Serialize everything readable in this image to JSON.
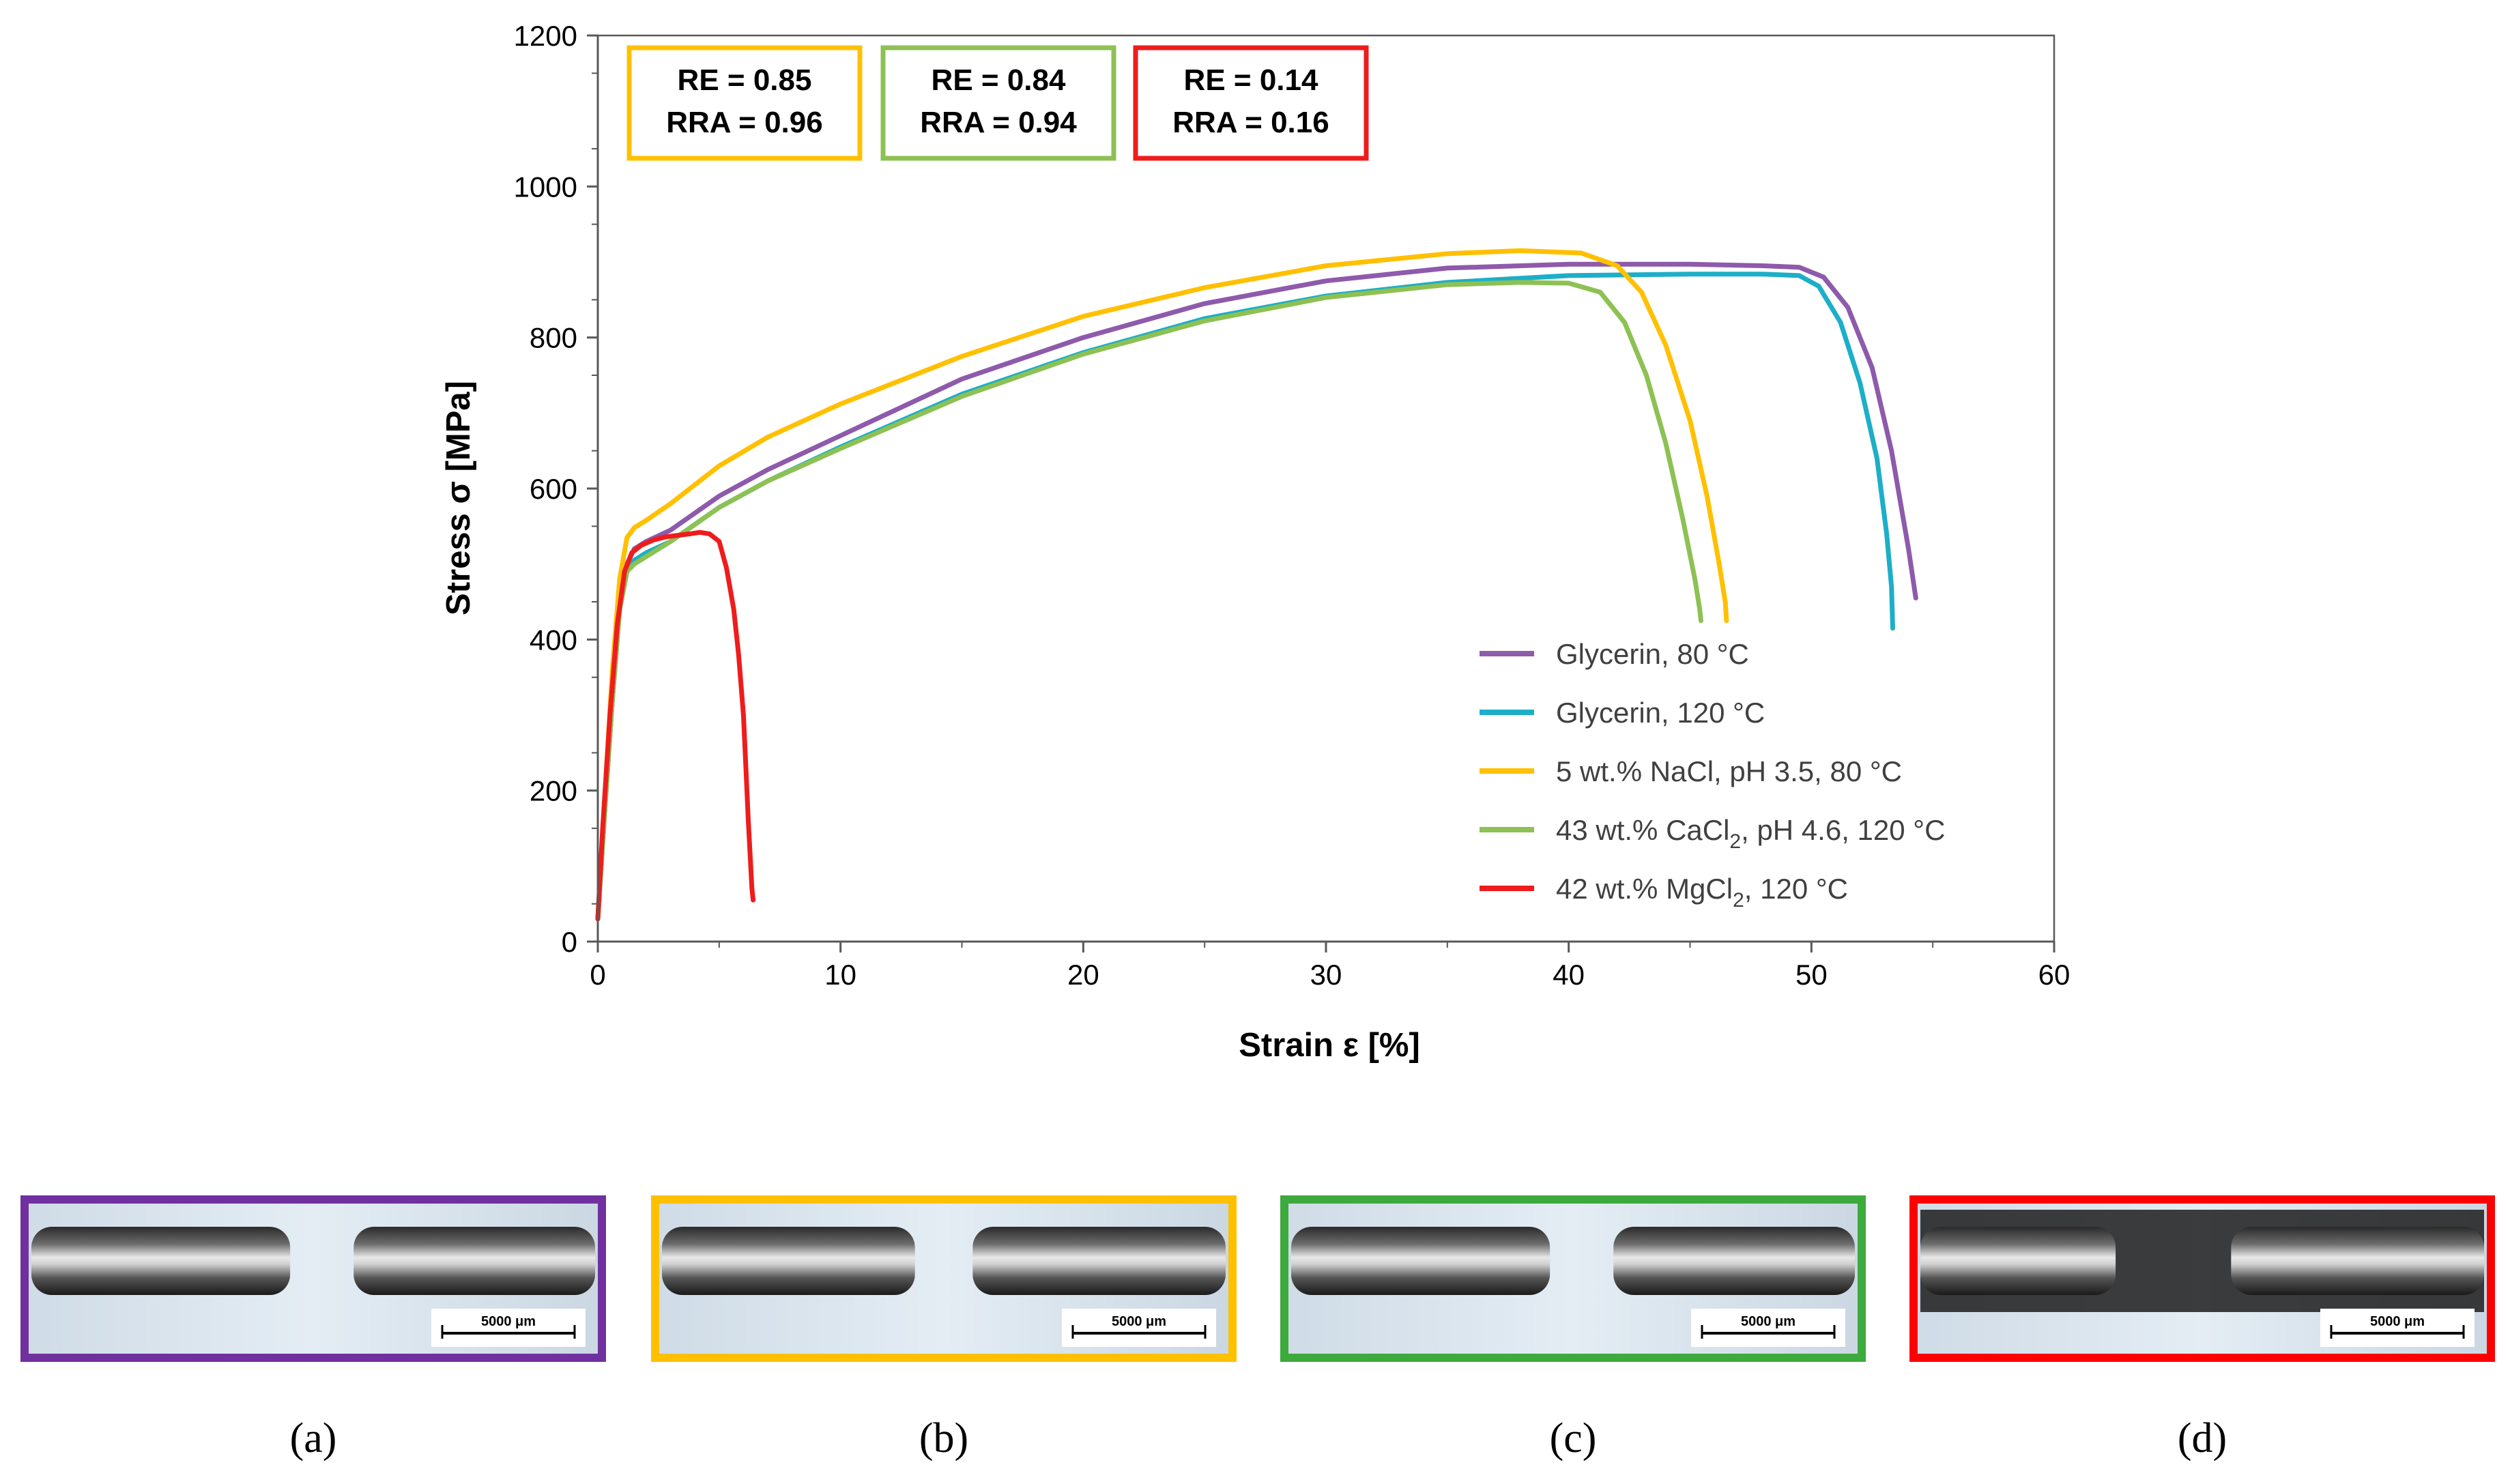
{
  "chart_data": {
    "type": "line",
    "xlabel": "Strain ε [%]",
    "ylabel": "Stress σ [MPa]",
    "xlim": [
      0,
      60
    ],
    "ylim": [
      0,
      1200
    ],
    "xticks": [
      0,
      10,
      20,
      30,
      40,
      50,
      60
    ],
    "yticks": [
      0,
      200,
      400,
      600,
      800,
      1000,
      1200
    ],
    "legend_position": "lower-right",
    "series": [
      {
        "name": "Glycerin, 80 °C",
        "legend": {
          "pre": "Glycerin, 80 °C",
          "sub": "",
          "post": ""
        },
        "color": "#8E5AAB",
        "x": [
          0,
          0.3,
          0.6,
          0.9,
          1.2,
          1.5,
          2,
          3,
          5,
          7,
          10,
          15,
          20,
          25,
          30,
          35,
          40,
          45,
          48,
          49.5,
          50.5,
          51.5,
          52.5,
          53.3,
          54,
          54.3
        ],
        "y": [
          30,
          180,
          320,
          440,
          500,
          520,
          530,
          545,
          590,
          625,
          670,
          745,
          800,
          845,
          875,
          892,
          897,
          897,
          895,
          893,
          880,
          840,
          760,
          650,
          520,
          455
        ]
      },
      {
        "name": "Glycerin, 120 °C",
        "legend": {
          "pre": "Glycerin, 120 °C",
          "sub": "",
          "post": ""
        },
        "color": "#1DAEC8",
        "x": [
          0,
          0.3,
          0.6,
          0.9,
          1.2,
          1.5,
          2,
          3,
          5,
          7,
          10,
          15,
          20,
          25,
          30,
          35,
          40,
          45,
          48,
          49.5,
          50.3,
          51.2,
          52,
          52.7,
          53.1,
          53.3,
          53.35
        ],
        "y": [
          30,
          180,
          320,
          440,
          490,
          505,
          515,
          530,
          575,
          610,
          655,
          725,
          780,
          825,
          855,
          873,
          882,
          884,
          884,
          882,
          868,
          820,
          740,
          640,
          540,
          470,
          415
        ]
      },
      {
        "name": "5 wt.% NaCl, pH 3.5, 80 °C",
        "legend": {
          "pre": "5 wt.% NaCl, pH 3.5, 80 °C",
          "sub": "",
          "post": ""
        },
        "color": "#FFC000",
        "x": [
          0,
          0.3,
          0.6,
          0.9,
          1.2,
          1.5,
          2,
          3,
          5,
          7,
          10,
          15,
          20,
          25,
          30,
          35,
          38,
          40.5,
          42,
          43,
          44,
          45,
          45.7,
          46.2,
          46.45,
          46.5
        ],
        "y": [
          30,
          200,
          360,
          480,
          535,
          548,
          558,
          580,
          630,
          668,
          712,
          775,
          828,
          866,
          895,
          911,
          915,
          912,
          895,
          860,
          790,
          690,
          590,
          500,
          450,
          425
        ]
      },
      {
        "name": "43 wt.% CaCl2, pH 4.6, 120 °C",
        "legend": {
          "pre": "43 wt.% CaCl",
          "sub": "2",
          "post": ", pH 4.6, 120 °C"
        },
        "color": "#8DC153",
        "x": [
          0,
          0.3,
          0.6,
          0.9,
          1.2,
          1.5,
          2,
          3,
          5,
          7,
          10,
          15,
          20,
          25,
          30,
          35,
          38,
          40,
          41.3,
          42.3,
          43.2,
          44,
          44.7,
          45.2,
          45.4,
          45.45
        ],
        "y": [
          30,
          180,
          320,
          440,
          490,
          500,
          510,
          530,
          575,
          610,
          653,
          722,
          778,
          822,
          853,
          870,
          873,
          872,
          860,
          820,
          750,
          660,
          560,
          480,
          440,
          425
        ]
      },
      {
        "name": "42 wt.% MgCl2, 120 °C",
        "legend": {
          "pre": "42 wt.% MgCl",
          "sub": "2",
          "post": ", 120 °C"
        },
        "color": "#EE1C1C",
        "x": [
          0,
          0.2,
          0.5,
          0.8,
          1.1,
          1.4,
          1.8,
          2.3,
          2.8,
          3.3,
          3.8,
          4.2,
          4.6,
          5.0,
          5.3,
          5.6,
          5.8,
          6.0,
          6.1,
          6.2,
          6.3,
          6.35,
          6.4
        ],
        "y": [
          30,
          150,
          300,
          420,
          490,
          515,
          525,
          532,
          536,
          538,
          540,
          542,
          540,
          530,
          495,
          440,
          380,
          300,
          230,
          160,
          100,
          70,
          55
        ]
      }
    ],
    "annotations": [
      {
        "line1": "RE = 0.85",
        "line2": "RRA = 0.96",
        "color": "#FFC000"
      },
      {
        "line1": "RE = 0.84",
        "line2": "RRA = 0.94",
        "color": "#8DC153"
      },
      {
        "line1": "RE = 0.14",
        "line2": "RRA = 0.16",
        "color": "#EE1C1C"
      }
    ]
  },
  "panels": [
    {
      "label": "(a)",
      "letter": "a",
      "border": "#7030A0",
      "scale": "5000 μm"
    },
    {
      "label": "(b)",
      "letter": "b",
      "border": "#FFC000",
      "scale": "5000 μm"
    },
    {
      "label": "(c)",
      "letter": "c",
      "border": "#3CAA3C",
      "scale": "5000 μm"
    },
    {
      "label": "(d)",
      "letter": "d",
      "border": "#FF0000",
      "scale": "5000 μm"
    }
  ]
}
